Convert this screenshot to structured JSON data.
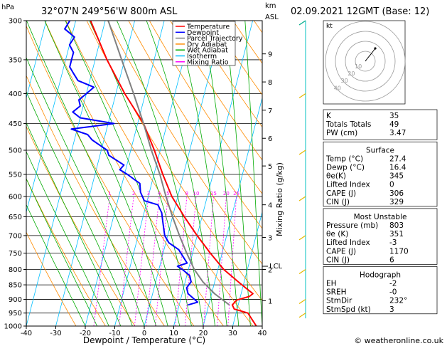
{
  "header": {
    "location": "32°07'N 249°56'W 800m ASL",
    "datetime": "02.09.2021 12GMT (Base: 12)"
  },
  "chart_data": {
    "type": "line",
    "title": "32°07'N 249°56'W 800m ASL",
    "xlabel": "Dewpoint / Temperature (°C)",
    "ylabel": "hPa",
    "y2label": "Mixing Ratio (g/kg)",
    "km_label": "km",
    "asl_label": "ASL",
    "xlim": [
      -40,
      40
    ],
    "ylim": [
      1000,
      300
    ],
    "skew_per_decade": 0.64,
    "x_ticks": [
      -40,
      -30,
      -20,
      -10,
      0,
      10,
      20,
      30,
      40
    ],
    "pressure_ticks": [
      300,
      350,
      400,
      450,
      500,
      550,
      600,
      650,
      700,
      750,
      800,
      850,
      900,
      950,
      1000
    ],
    "km_ticks": [
      {
        "label": "9",
        "p": 342
      },
      {
        "label": "8",
        "p": 382
      },
      {
        "label": "7",
        "p": 427
      },
      {
        "label": "6",
        "p": 477
      },
      {
        "label": "5",
        "p": 532
      },
      {
        "label": "4",
        "p": 620
      },
      {
        "label": "3",
        "p": 705
      },
      {
        "label": "2",
        "p": 800
      },
      {
        "label": "1",
        "p": 905
      }
    ],
    "lcl": {
      "label": "LCL",
      "p": 790
    },
    "mixing_ratio_labels": [
      "1",
      "2",
      "3",
      "4",
      "5",
      "8",
      "10",
      "15",
      "20",
      "25"
    ],
    "legend": [
      {
        "name": "Temperature",
        "color": "#ff0000"
      },
      {
        "name": "Dewpoint",
        "color": "#0000ff"
      },
      {
        "name": "Parcel Trajectory",
        "color": "#808080"
      },
      {
        "name": "Dry Adiabat",
        "color": "#ff8c00"
      },
      {
        "name": "Wet Adiabat",
        "color": "#00aa00"
      },
      {
        "name": "Isotherm",
        "color": "#00bfff"
      },
      {
        "name": "Mixing Ratio",
        "color": "#ff00ff"
      }
    ],
    "series": [
      {
        "name": "Temperature",
        "color": "#ff0000",
        "points": [
          [
            1000,
            38
          ],
          [
            950,
            34
          ],
          [
            935,
            29
          ],
          [
            920,
            28
          ],
          [
            903,
            29
          ],
          [
            890,
            33
          ],
          [
            880,
            34
          ],
          [
            860,
            31
          ],
          [
            840,
            28
          ],
          [
            800,
            22
          ],
          [
            750,
            16
          ],
          [
            700,
            10
          ],
          [
            650,
            4
          ],
          [
            600,
            -2
          ],
          [
            550,
            -7
          ],
          [
            500,
            -12
          ],
          [
            450,
            -18
          ],
          [
            400,
            -27
          ],
          [
            350,
            -36
          ],
          [
            300,
            -45
          ]
        ]
      },
      {
        "name": "Dewpoint",
        "color": "#0000ff",
        "points": [
          [
            920,
            13
          ],
          [
            910,
            16
          ],
          [
            880,
            12
          ],
          [
            860,
            11
          ],
          [
            840,
            12
          ],
          [
            820,
            11
          ],
          [
            800,
            8
          ],
          [
            790,
            6
          ],
          [
            780,
            9
          ],
          [
            760,
            7
          ],
          [
            740,
            5
          ],
          [
            720,
            1
          ],
          [
            700,
            -1
          ],
          [
            680,
            -2
          ],
          [
            660,
            -3
          ],
          [
            640,
            -4
          ],
          [
            620,
            -6
          ],
          [
            610,
            -11
          ],
          [
            590,
            -13
          ],
          [
            570,
            -14
          ],
          [
            550,
            -19
          ],
          [
            540,
            -22
          ],
          [
            530,
            -21
          ],
          [
            510,
            -27
          ],
          [
            500,
            -28
          ],
          [
            490,
            -31
          ],
          [
            480,
            -34
          ],
          [
            470,
            -36
          ],
          [
            460,
            -42
          ],
          [
            450,
            -28
          ],
          [
            440,
            -40
          ],
          [
            430,
            -43
          ],
          [
            420,
            -41
          ],
          [
            410,
            -42
          ],
          [
            400,
            -40
          ],
          [
            390,
            -38
          ],
          [
            380,
            -44
          ],
          [
            370,
            -46
          ],
          [
            360,
            -48
          ],
          [
            350,
            -48
          ],
          [
            340,
            -48
          ],
          [
            330,
            -50
          ],
          [
            320,
            -49
          ],
          [
            310,
            -53
          ],
          [
            300,
            -52
          ]
        ]
      },
      {
        "name": "Parcel Trajectory",
        "color": "#808080",
        "points": [
          [
            920,
            27
          ],
          [
            880,
            21
          ],
          [
            840,
            16
          ],
          [
            800,
            12
          ],
          [
            750,
            8
          ],
          [
            700,
            4
          ],
          [
            650,
            0
          ],
          [
            600,
            -4
          ],
          [
            550,
            -8
          ],
          [
            500,
            -13
          ],
          [
            450,
            -18
          ],
          [
            400,
            -24
          ],
          [
            350,
            -31
          ],
          [
            300,
            -39
          ]
        ]
      }
    ]
  },
  "hodograph": {
    "unit_label": "kt",
    "ring_labels": [
      "10",
      "20",
      "30",
      "40"
    ]
  },
  "indices": {
    "rows": [
      {
        "label": "K",
        "value": "35"
      },
      {
        "label": "Totals Totals",
        "value": "49"
      },
      {
        "label": "PW (cm)",
        "value": "3.47"
      }
    ]
  },
  "surface": {
    "title": "Surface",
    "rows": [
      {
        "label": "Temp (°C)",
        "value": "27.4"
      },
      {
        "label": "Dewp (°C)",
        "value": "16.4"
      },
      {
        "label": "θe(K)",
        "value": "345"
      },
      {
        "label": "Lifted Index",
        "value": "0"
      },
      {
        "label": "CAPE (J)",
        "value": "306"
      },
      {
        "label": "CIN (J)",
        "value": "329"
      }
    ]
  },
  "most_unstable": {
    "title": "Most Unstable",
    "rows": [
      {
        "label": "Pressure (mb)",
        "value": "803"
      },
      {
        "label": "θe (K)",
        "value": "351"
      },
      {
        "label": "Lifted Index",
        "value": "-3"
      },
      {
        "label": "CAPE (J)",
        "value": "1170"
      },
      {
        "label": "CIN (J)",
        "value": "6"
      }
    ]
  },
  "hodograph_table": {
    "title": "Hodograph",
    "rows": [
      {
        "label": "EH",
        "value": "-2"
      },
      {
        "label": "SREH",
        "value": "-0"
      },
      {
        "label": "StmDir",
        "value": "232°"
      },
      {
        "label": "StmSpd (kt)",
        "value": "3"
      }
    ]
  },
  "footer": {
    "copyright": "© weatheronline.co.uk"
  }
}
